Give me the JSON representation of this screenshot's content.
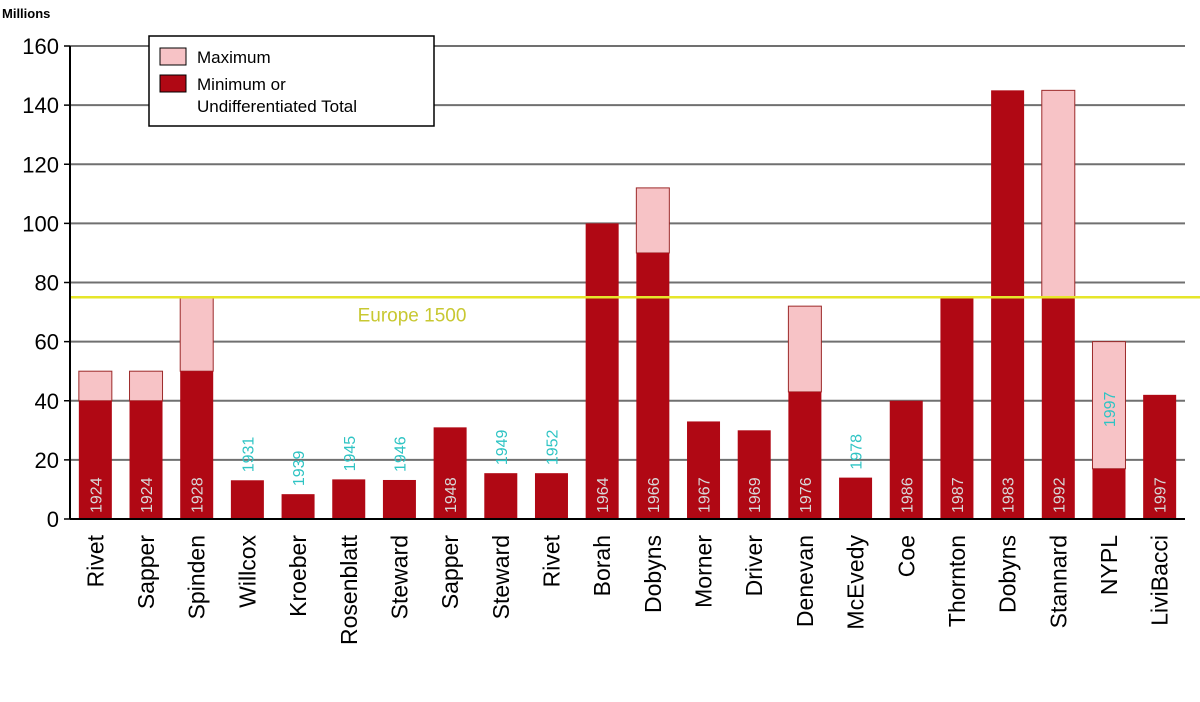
{
  "chart_data": {
    "type": "bar",
    "stacked": true,
    "title": "",
    "xlabel": "",
    "ylabel": "Millions",
    "ylim": [
      0,
      160
    ],
    "yticks": [
      0,
      20,
      40,
      60,
      80,
      100,
      120,
      140,
      160
    ],
    "grid": true,
    "legend_position": "top-left",
    "colors": {
      "minimum": "#b00814",
      "maximum": "#f7c3c6",
      "reference_line": "#e6e62a",
      "year_inside_bar": "#d8d8d8",
      "year_above_bar": "#2fc4c4"
    },
    "series": [
      {
        "name": "Maximum",
        "color": "#f7c3c6"
      },
      {
        "name": "Minimum or Undifferentiated Total",
        "color": "#b00814"
      }
    ],
    "reference_line": {
      "label": "Europe 1500",
      "value": 75
    },
    "bars": [
      {
        "author": "Rivet",
        "year": "1924",
        "min": 40,
        "max": 50
      },
      {
        "author": "Sapper",
        "year": "1924",
        "min": 40,
        "max": 50
      },
      {
        "author": "Spinden",
        "year": "1928",
        "min": 50,
        "max": 75
      },
      {
        "author": "Willcox",
        "year": "1931",
        "min": 13.1,
        "max": null
      },
      {
        "author": "Kroeber",
        "year": "1939",
        "min": 8.4,
        "max": null
      },
      {
        "author": "Rosenblatt",
        "year": "1945",
        "min": 13.4,
        "max": null
      },
      {
        "author": "Steward",
        "year": "1946",
        "min": 13.2,
        "max": null
      },
      {
        "author": "Sapper",
        "year": "1948",
        "min": 31,
        "max": null
      },
      {
        "author": "Steward",
        "year": "1949",
        "min": 15.5,
        "max": null
      },
      {
        "author": "Rivet",
        "year": "1952",
        "min": 15.5,
        "max": null
      },
      {
        "author": "Borah",
        "year": "1964",
        "min": 100,
        "max": null
      },
      {
        "author": "Dobyns",
        "year": "1966",
        "min": 90,
        "max": 112
      },
      {
        "author": "Morner",
        "year": "1967",
        "min": 33,
        "max": null
      },
      {
        "author": "Driver",
        "year": "1969",
        "min": 30,
        "max": null
      },
      {
        "author": "Denevan",
        "year": "1976",
        "min": 43,
        "max": 72
      },
      {
        "author": "McEvedy",
        "year": "1978",
        "min": 14,
        "max": null
      },
      {
        "author": "Coe",
        "year": "1986",
        "min": 40,
        "max": null
      },
      {
        "author": "Thornton",
        "year": "1987",
        "min": 75,
        "max": null
      },
      {
        "author": "Dobyns",
        "year": "1983",
        "min": 145,
        "max": null
      },
      {
        "author": "Stannard",
        "year": "1992",
        "min": 75,
        "max": 145
      },
      {
        "author": "NYPL",
        "year": "1997",
        "min": 17,
        "max": 60
      },
      {
        "author": "LiviBacci",
        "year": "1997",
        "min": 42,
        "max": null
      }
    ]
  }
}
